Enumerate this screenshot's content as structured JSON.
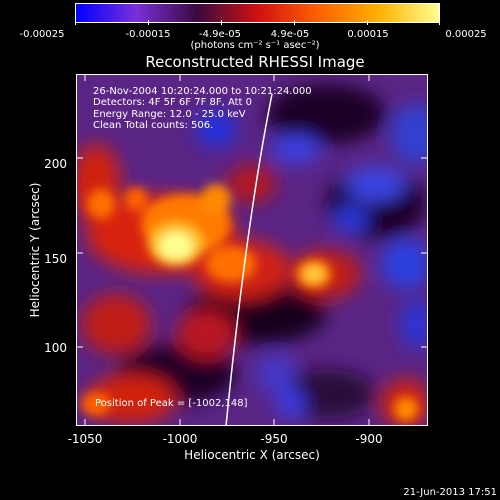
{
  "colorbar": {
    "tick_labels": [
      "-0.00025",
      "-0.00015",
      "-4.9e-05",
      "4.9e-05",
      "0.00015",
      "0.00025"
    ],
    "units": "(photons cm⁻² s⁻¹ asec⁻²)",
    "colors": [
      "#0000ff",
      "#7a2fd8",
      "#3a0a40",
      "#d01010",
      "#ff6000",
      "#ffb000",
      "#ffff90"
    ]
  },
  "title": "Reconstructed RHESSI Image",
  "annotations": {
    "line1": "26-Nov-2004 10:20:24.000 to 10:21:24.000",
    "line2": "Detectors: 4F 5F 6F 7F 8F, Att 0",
    "line3": "Energy Range: 12.0 - 25.0 keV",
    "line4": "Clean    Total counts: 506.",
    "peak": "Position of Peak = [-1002,148]"
  },
  "axes": {
    "xlabel": "Heliocentric X (arcsec)",
    "ylabel": "Heliocentric Y (arcsec)",
    "x_ticks": [
      "-1050",
      "-1000",
      "-950",
      "-900"
    ],
    "y_ticks": [
      "200",
      "150",
      "100"
    ],
    "xlim": [
      -1055,
      -869
    ],
    "ylim": [
      55,
      241
    ]
  },
  "footer": {
    "date": "21-Jun-2013 17:51"
  }
}
